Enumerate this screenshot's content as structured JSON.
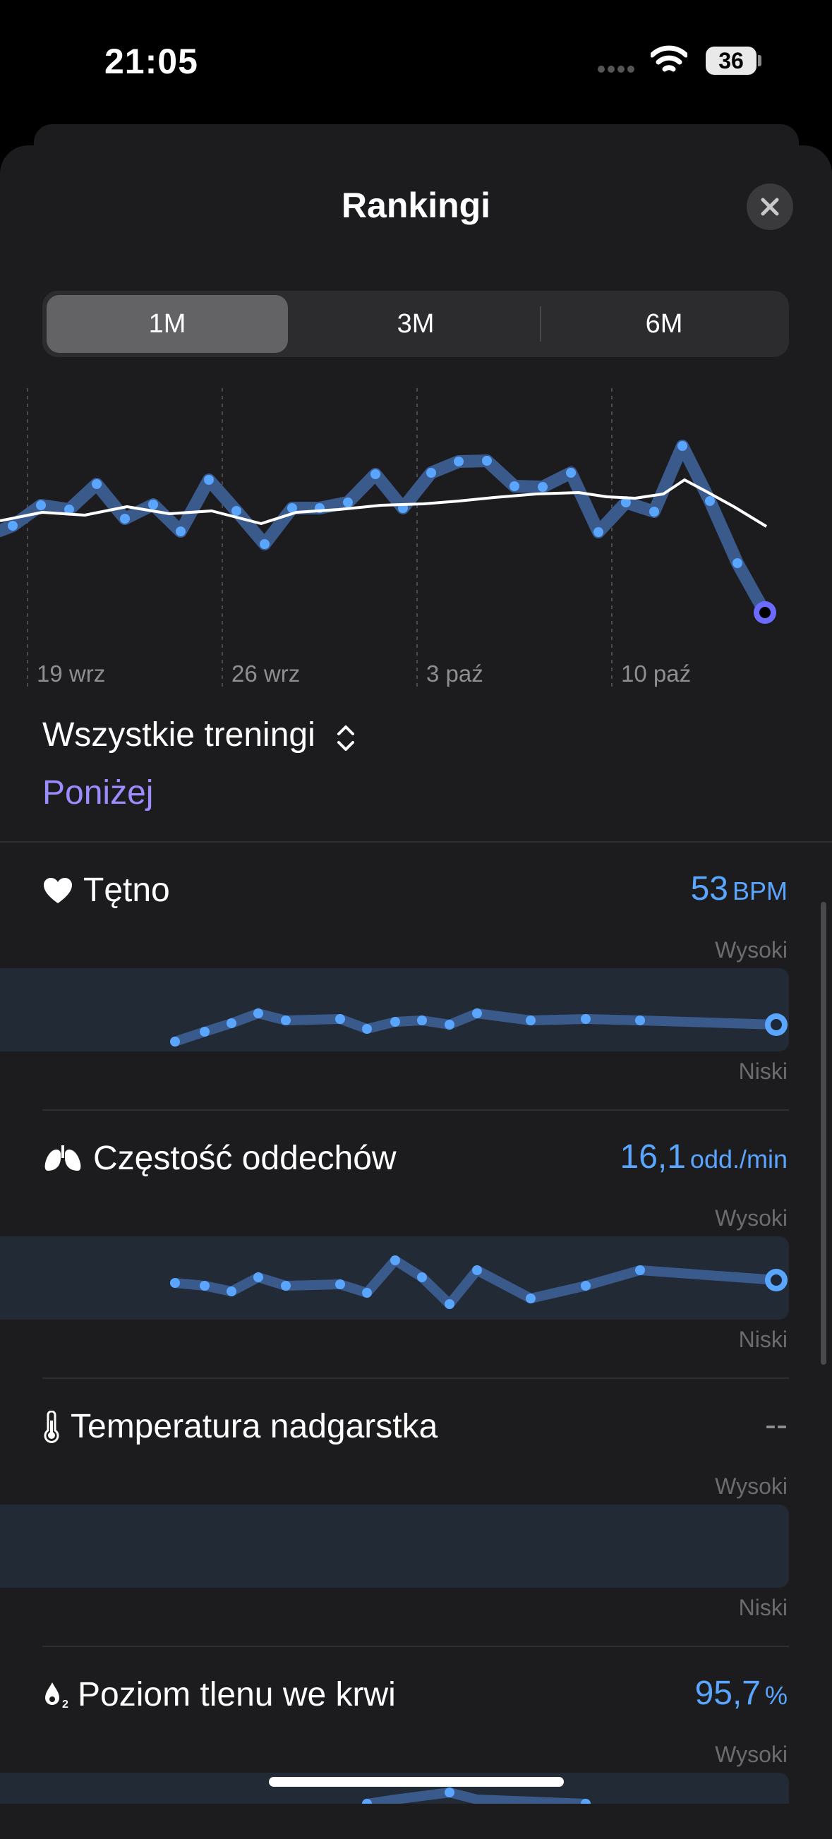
{
  "status_bar": {
    "time": "21:05",
    "battery": "36"
  },
  "sheet": {
    "title": "Rankingi"
  },
  "segmented": {
    "options": [
      "1M",
      "3M",
      "6M"
    ],
    "selected": "1M"
  },
  "main_chart": {
    "date_labels": [
      "19 wrz",
      "26 wrz",
      "3 paź",
      "10 paź"
    ]
  },
  "filter": {
    "label": "Wszystkie treningi",
    "status": "Poniżej"
  },
  "metrics": [
    {
      "title": "Tętno",
      "value": "53",
      "unit": "BPM",
      "high": "Wysoki",
      "low": "Niski",
      "icon": "heart-icon"
    },
    {
      "title": "Częstość oddechów",
      "value": "16,1",
      "unit": "odd./min",
      "high": "Wysoki",
      "low": "Niski",
      "icon": "lungs-icon"
    },
    {
      "title": "Temperatura nadgarstka",
      "value": "--",
      "unit": "",
      "high": "Wysoki",
      "low": "Niski",
      "icon": "thermometer-icon"
    },
    {
      "title": "Poziom tlenu we krwi",
      "value": "95,7",
      "unit": "%",
      "high": "Wysoki",
      "icon": "blood-oxygen-icon"
    }
  ],
  "colors": {
    "accent_blue": "#5aa6ff",
    "accent_purple": "#9b8cff",
    "band": "#222a36"
  }
}
